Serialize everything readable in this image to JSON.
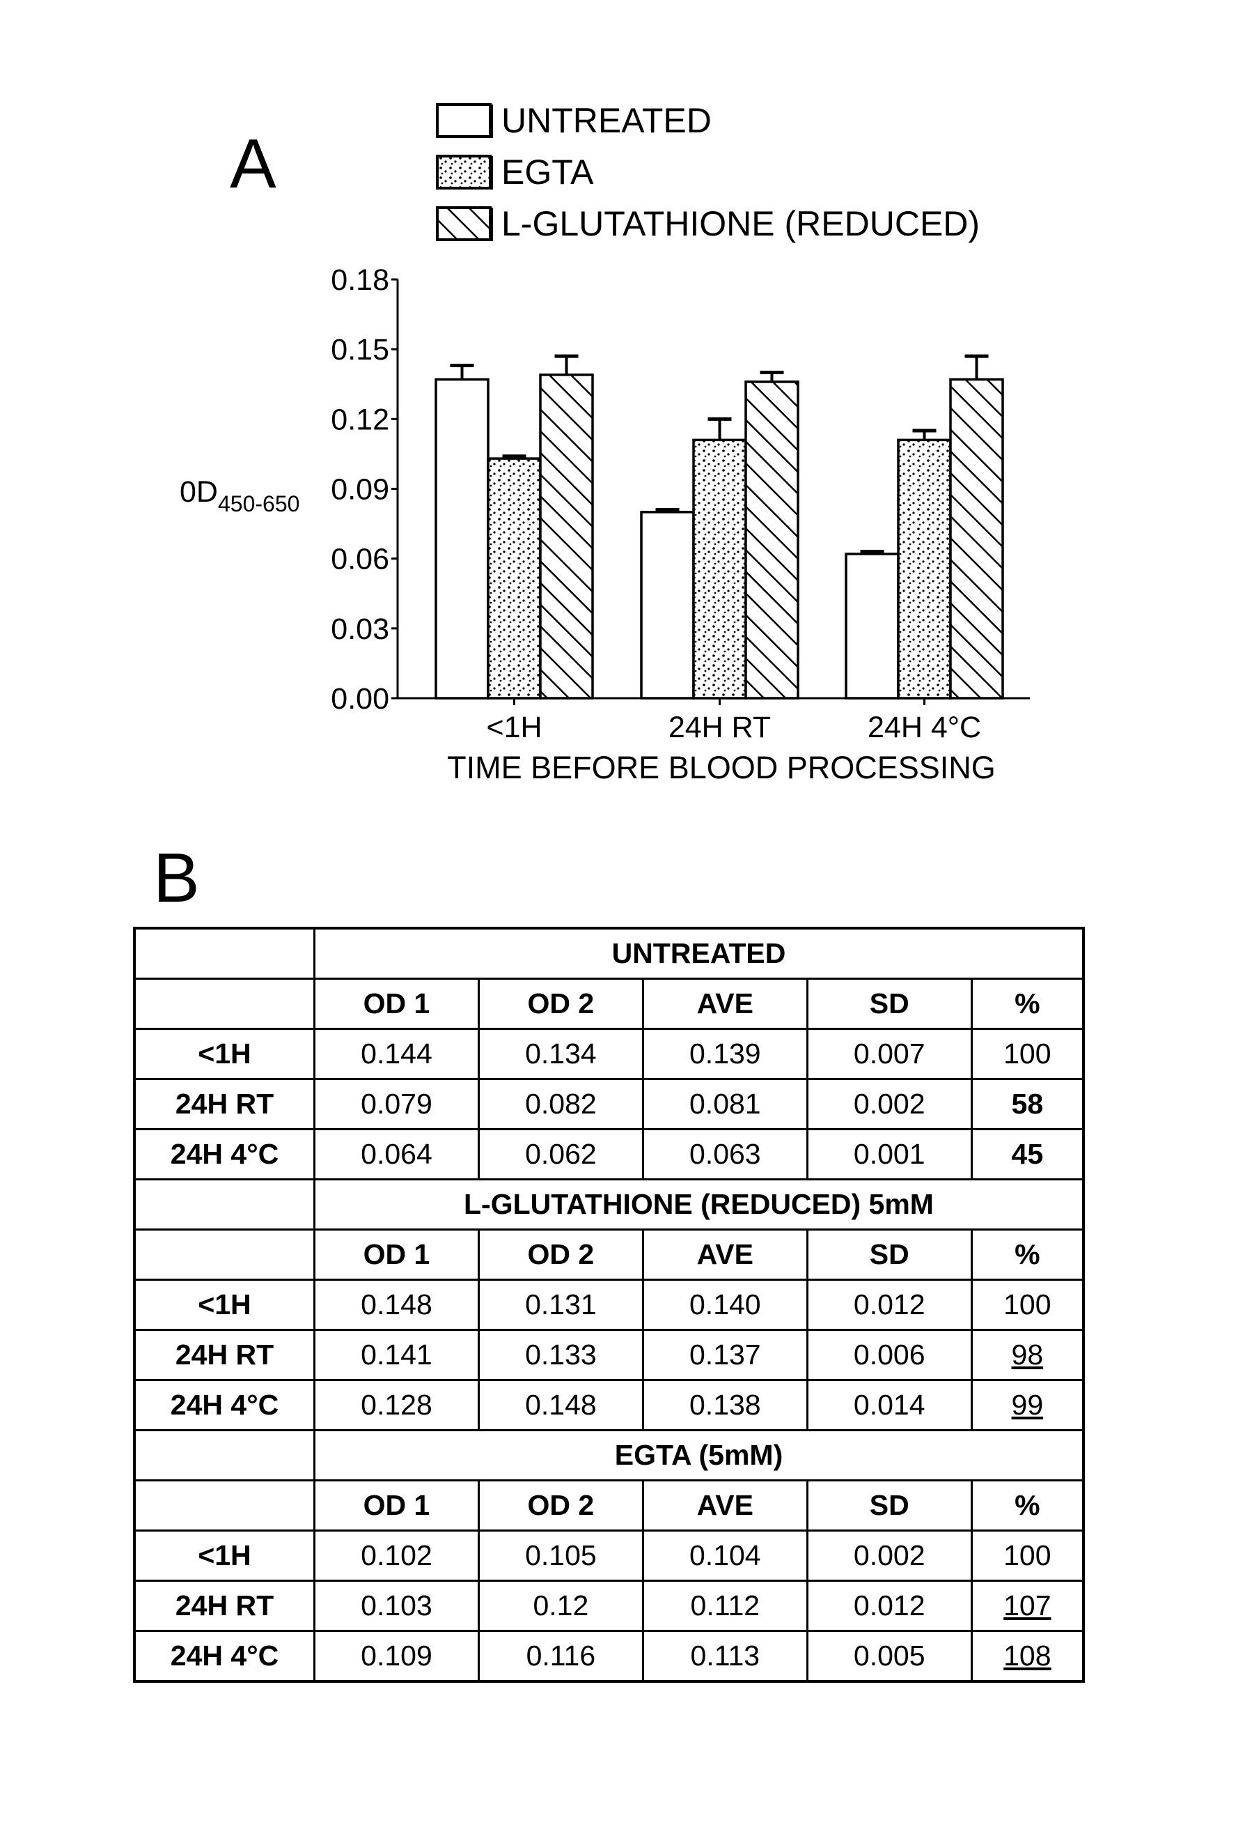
{
  "panel_a_label": "A",
  "panel_b_label": "B",
  "chart_data": {
    "type": "bar",
    "title": "",
    "xlabel": "TIME BEFORE BLOOD PROCESSING",
    "ylabel": "0D",
    "ylabel_subscript": "450-650",
    "categories": [
      "<1H",
      "24H RT",
      "24H 4°C"
    ],
    "ylim": [
      0,
      0.18
    ],
    "yticks": [
      "0.00",
      "0.03",
      "0.06",
      "0.09",
      "0.12",
      "0.15",
      "0.18"
    ],
    "legend_placement": "top",
    "series": [
      {
        "name": "UNTREATED",
        "pattern": "none",
        "values": [
          0.137,
          0.08,
          0.062
        ],
        "error_upper": [
          0.143,
          0.081,
          0.063
        ]
      },
      {
        "name": "EGTA",
        "pattern": "dots",
        "values": [
          0.103,
          0.111,
          0.111
        ],
        "error_upper": [
          0.104,
          0.12,
          0.115
        ]
      },
      {
        "name": "L-GLUTATHIONE (REDUCED)",
        "pattern": "hatch",
        "values": [
          0.139,
          0.136,
          0.137
        ],
        "error_upper": [
          0.147,
          0.14,
          0.147
        ]
      }
    ]
  },
  "table": {
    "columns": [
      "OD 1",
      "OD 2",
      "AVE",
      "SD",
      "%"
    ],
    "sections": [
      {
        "title": "UNTREATED",
        "rows": [
          {
            "label": "<1H",
            "cells": [
              "0.144",
              "0.134",
              "0.139",
              "0.007",
              "100"
            ],
            "pct_style": "plain"
          },
          {
            "label": "24H RT",
            "cells": [
              "0.079",
              "0.082",
              "0.081",
              "0.002",
              "58"
            ],
            "pct_style": "bold"
          },
          {
            "label": "24H 4°C",
            "cells": [
              "0.064",
              "0.062",
              "0.063",
              "0.001",
              "45"
            ],
            "pct_style": "bold"
          }
        ]
      },
      {
        "title": "L-GLUTATHIONE (REDUCED) 5mM",
        "rows": [
          {
            "label": "<1H",
            "cells": [
              "0.148",
              "0.131",
              "0.140",
              "0.012",
              "100"
            ],
            "pct_style": "plain"
          },
          {
            "label": "24H RT",
            "cells": [
              "0.141",
              "0.133",
              "0.137",
              "0.006",
              "98"
            ],
            "pct_style": "underline"
          },
          {
            "label": "24H 4°C",
            "cells": [
              "0.128",
              "0.148",
              "0.138",
              "0.014",
              "99"
            ],
            "pct_style": "underline"
          }
        ]
      },
      {
        "title": "EGTA (5mM)",
        "rows": [
          {
            "label": "<1H",
            "cells": [
              "0.102",
              "0.105",
              "0.104",
              "0.002",
              "100"
            ],
            "pct_style": "plain"
          },
          {
            "label": "24H RT",
            "cells": [
              "0.103",
              "0.12",
              "0.112",
              "0.012",
              "107"
            ],
            "pct_style": "underline"
          },
          {
            "label": "24H 4°C",
            "cells": [
              "0.109",
              "0.116",
              "0.113",
              "0.005",
              "108"
            ],
            "pct_style": "underline"
          }
        ]
      }
    ]
  }
}
